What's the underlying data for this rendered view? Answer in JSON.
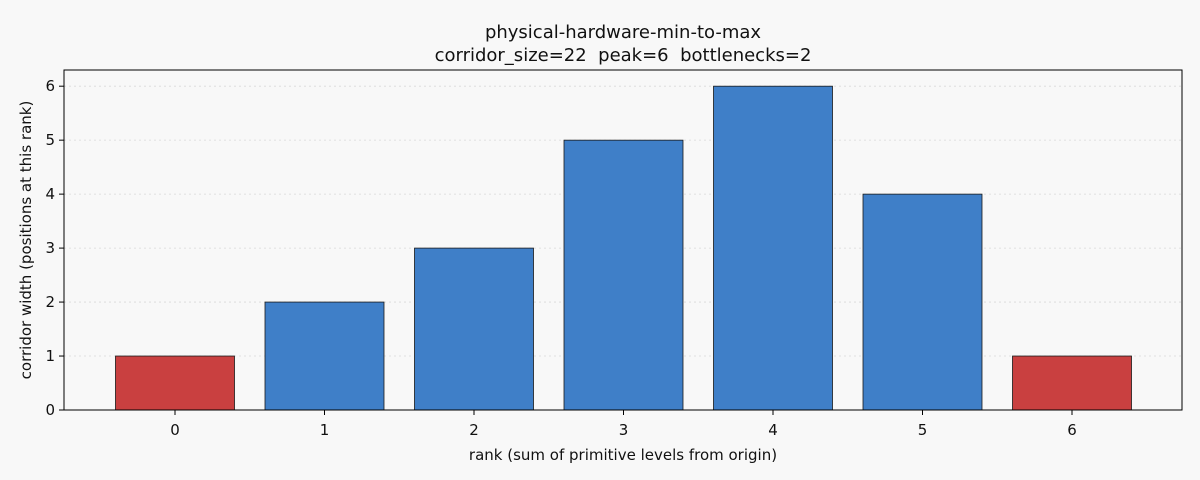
{
  "chart_data": {
    "type": "bar",
    "title": "physical-hardware-min-to-max",
    "subtitle": "corridor_size=22  peak=6  bottlenecks=2",
    "xlabel": "rank (sum of primitive levels from origin)",
    "ylabel": "corridor width (positions at this rank)",
    "categories": [
      "0",
      "1",
      "2",
      "3",
      "4",
      "5",
      "6"
    ],
    "values": [
      1,
      2,
      3,
      5,
      6,
      4,
      1
    ],
    "bar_colors": [
      "#c94040",
      "#3f7fc8",
      "#3f7fc8",
      "#3f7fc8",
      "#3f7fc8",
      "#3f7fc8",
      "#c94040"
    ],
    "yticks": [
      0,
      1,
      2,
      3,
      4,
      5,
      6
    ],
    "ylim": [
      0,
      6.3
    ],
    "grid": "horizontal dotted",
    "legend": "none"
  },
  "colors": {
    "background": "#f8f8f8",
    "plot_background": "#f8f8f8",
    "bottleneck_bar": "#c94040",
    "regular_bar": "#3f7fc8",
    "bar_edge": "#1a1a1a",
    "grid": "#d9d9d9"
  }
}
